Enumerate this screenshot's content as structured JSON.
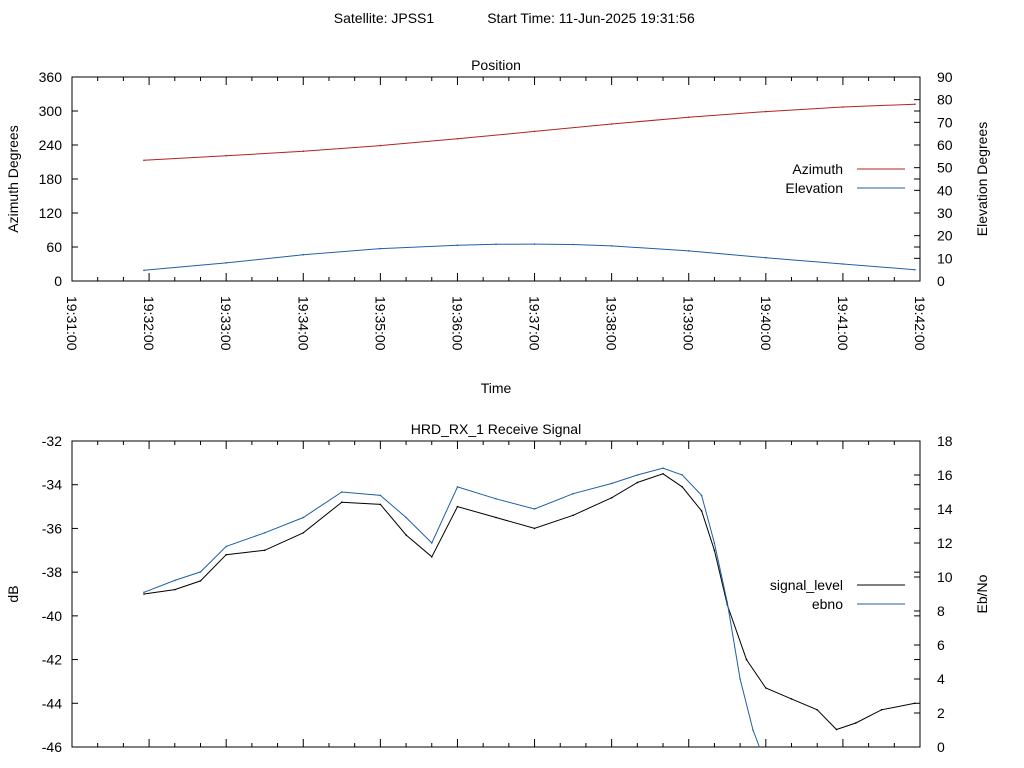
{
  "page": {
    "header_satellite": "Satellite: JPSS1",
    "header_start_time": "Start Time: 11-Jun-2025 19:31:56"
  },
  "chart_data": [
    {
      "type": "line",
      "title": "Position",
      "xlabel": "Time",
      "ylabel": "Azimuth Degrees",
      "y2label": "Elevation Degrees",
      "x_ticks": [
        "19:31:00",
        "19:32:00",
        "19:33:00",
        "19:34:00",
        "19:35:00",
        "19:36:00",
        "19:37:00",
        "19:38:00",
        "19:39:00",
        "19:40:00",
        "19:41:00",
        "19:42:00"
      ],
      "xlim": [
        "19:31:00",
        "19:42:00"
      ],
      "ylim": [
        0,
        360
      ],
      "y_ticks": [
        0,
        60,
        120,
        180,
        240,
        300,
        360
      ],
      "y2lim": [
        0,
        90
      ],
      "y2_ticks": [
        0,
        10,
        20,
        30,
        40,
        50,
        60,
        70,
        80,
        90
      ],
      "legend_position": "right",
      "series": [
        {
          "name": "Azimuth",
          "axis": "y",
          "color": "#b22222",
          "x": [
            "19:31:56",
            "19:33:00",
            "19:34:00",
            "19:35:00",
            "19:36:00",
            "19:37:00",
            "19:38:00",
            "19:39:00",
            "19:40:00",
            "19:41:00",
            "19:41:56"
          ],
          "values": [
            213,
            221,
            229,
            239,
            251,
            264,
            277,
            289,
            299,
            307,
            312
          ]
        },
        {
          "name": "Elevation",
          "axis": "y2",
          "color": "#1f5fa8",
          "x": [
            "19:31:56",
            "19:33:00",
            "19:34:00",
            "19:35:00",
            "19:36:00",
            "19:36:30",
            "19:37:00",
            "19:37:30",
            "19:38:00",
            "19:39:00",
            "19:40:00",
            "19:41:00",
            "19:41:56"
          ],
          "values": [
            4.7,
            8.0,
            11.6,
            14.3,
            15.8,
            16.2,
            16.3,
            16.1,
            15.5,
            13.3,
            10.3,
            7.5,
            5.0
          ]
        }
      ]
    },
    {
      "type": "line",
      "title": "HRD_RX_1 Receive Signal",
      "ylabel": "dB",
      "y2label": "Eb/No",
      "xlim": [
        "19:31:00",
        "19:42:00"
      ],
      "ylim": [
        -46,
        -32
      ],
      "y_ticks": [
        -46,
        -44,
        -42,
        -40,
        -38,
        -36,
        -34,
        -32
      ],
      "y2lim": [
        0,
        18
      ],
      "y2_ticks": [
        0,
        2,
        4,
        6,
        8,
        10,
        12,
        14,
        16,
        18
      ],
      "legend_position": "right",
      "series": [
        {
          "name": "signal_level",
          "axis": "y",
          "color": "#000000",
          "x": [
            "19:31:56",
            "19:32:20",
            "19:32:40",
            "19:33:00",
            "19:33:30",
            "19:34:00",
            "19:34:30",
            "19:35:00",
            "19:35:20",
            "19:35:40",
            "19:36:00",
            "19:36:30",
            "19:37:00",
            "19:37:30",
            "19:38:00",
            "19:38:20",
            "19:38:40",
            "19:38:55",
            "19:39:10",
            "19:39:20",
            "19:39:30",
            "19:39:45",
            "19:40:00",
            "19:40:20",
            "19:40:40",
            "19:40:55",
            "19:41:10",
            "19:41:30",
            "19:41:56"
          ],
          "values": [
            -39.0,
            -38.8,
            -38.4,
            -37.2,
            -37.0,
            -36.2,
            -34.8,
            -34.9,
            -36.3,
            -37.3,
            -35.0,
            -35.5,
            -36.0,
            -35.4,
            -34.6,
            -33.9,
            -33.5,
            -34.1,
            -35.2,
            -37.0,
            -39.5,
            -42.0,
            -43.3,
            -43.8,
            -44.3,
            -45.2,
            -44.9,
            -44.3,
            -44.0
          ]
        },
        {
          "name": "ebno",
          "axis": "y2",
          "color": "#1f5fa8",
          "x": [
            "19:31:56",
            "19:32:20",
            "19:32:40",
            "19:33:00",
            "19:33:30",
            "19:34:00",
            "19:34:30",
            "19:35:00",
            "19:35:20",
            "19:35:40",
            "19:36:00",
            "19:36:30",
            "19:37:00",
            "19:37:30",
            "19:38:00",
            "19:38:20",
            "19:38:40",
            "19:38:55",
            "19:39:10",
            "19:39:20",
            "19:39:30",
            "19:39:40",
            "19:39:50",
            "19:39:55"
          ],
          "values": [
            9.1,
            9.8,
            10.3,
            11.8,
            12.6,
            13.5,
            15.0,
            14.8,
            13.5,
            12.0,
            15.3,
            14.6,
            14.0,
            14.9,
            15.5,
            16.0,
            16.4,
            16.0,
            14.8,
            12.0,
            8.5,
            4.0,
            1.0,
            0.0
          ]
        }
      ]
    }
  ]
}
